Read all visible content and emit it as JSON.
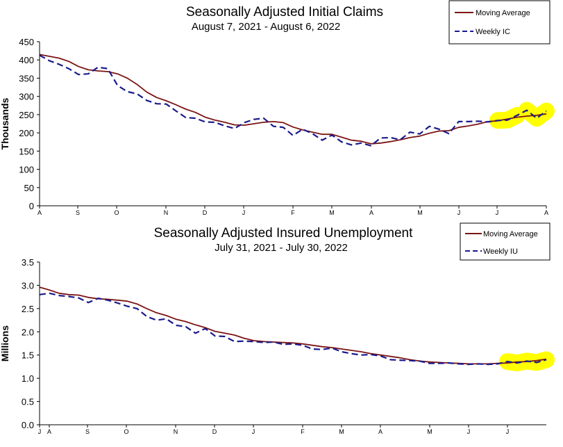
{
  "chart_data": [
    {
      "type": "line",
      "title": "Seasonally Adjusted Initial Claims",
      "subtitle": "August 7, 2021 - August 6, 2022",
      "xlabel": "",
      "ylabel": "Thousands",
      "ylim": [
        0,
        450
      ],
      "yticks": [
        "0",
        "50",
        "100",
        "150",
        "200",
        "250",
        "300",
        "350",
        "400",
        "450"
      ],
      "xticks": [
        "A",
        "S",
        "O",
        "N",
        "D",
        "J",
        "F",
        "M",
        "A",
        "M",
        "J",
        "J",
        "A"
      ],
      "grid": false,
      "legend": "top-right",
      "highlight_color": "#ffff00",
      "series": [
        {
          "name": "Moving Average",
          "color": "#7b1414",
          "style": "solid",
          "values": [
            415,
            410,
            405,
            396,
            382,
            373,
            370,
            368,
            362,
            350,
            333,
            312,
            297,
            288,
            277,
            265,
            256,
            243,
            235,
            229,
            222,
            221,
            225,
            229,
            231,
            228,
            216,
            208,
            202,
            196,
            196,
            188,
            180,
            177,
            170,
            172,
            176,
            181,
            187,
            191,
            199,
            205,
            206,
            215,
            219,
            224,
            231,
            233,
            238,
            243,
            246,
            248,
            252
          ]
        },
        {
          "name": "Weekly IC",
          "color": "#1a1a8c",
          "style": "dashed",
          "values": [
            413,
            398,
            388,
            376,
            360,
            362,
            380,
            376,
            330,
            313,
            307,
            289,
            280,
            279,
            260,
            242,
            240,
            230,
            229,
            219,
            212,
            228,
            237,
            240,
            218,
            215,
            193,
            210,
            198,
            180,
            194,
            175,
            167,
            172,
            165,
            186,
            187,
            181,
            202,
            197,
            218,
            210,
            198,
            231,
            231,
            232,
            230,
            234,
            235,
            248,
            262,
            240,
            260
          ]
        }
      ]
    },
    {
      "type": "line",
      "title": "Seasonally Adjusted Insured Unemployment",
      "subtitle": "July 31, 2021 - July 30, 2022",
      "xlabel": "",
      "ylabel": "Millions",
      "ylim": [
        0,
        3.5
      ],
      "yticks": [
        "0.0",
        "0.5",
        "1.0",
        "1.5",
        "2.0",
        "2.5",
        "3.0",
        "3.5"
      ],
      "xticks": [
        "J",
        "A",
        "S",
        "O",
        "N",
        "D",
        "J",
        "F",
        "M",
        "A",
        "M",
        "J",
        "J"
      ],
      "grid": false,
      "legend": "top-right",
      "highlight_color": "#ffff00",
      "series": [
        {
          "name": "Moving Average",
          "color": "#7b1414",
          "style": "solid",
          "values": [
            2.96,
            2.9,
            2.83,
            2.8,
            2.79,
            2.74,
            2.71,
            2.7,
            2.68,
            2.66,
            2.6,
            2.5,
            2.41,
            2.35,
            2.27,
            2.22,
            2.15,
            2.09,
            2.01,
            1.97,
            1.93,
            1.86,
            1.81,
            1.79,
            1.78,
            1.77,
            1.76,
            1.74,
            1.71,
            1.68,
            1.66,
            1.63,
            1.6,
            1.57,
            1.53,
            1.5,
            1.47,
            1.44,
            1.4,
            1.37,
            1.35,
            1.34,
            1.33,
            1.32,
            1.31,
            1.31,
            1.31,
            1.32,
            1.33,
            1.35,
            1.36,
            1.38,
            1.41
          ]
        },
        {
          "name": "Weekly IU",
          "color": "#1a1a8c",
          "style": "dashed",
          "values": [
            2.8,
            2.83,
            2.78,
            2.76,
            2.73,
            2.63,
            2.72,
            2.68,
            2.62,
            2.55,
            2.5,
            2.33,
            2.25,
            2.28,
            2.14,
            2.11,
            1.97,
            2.07,
            1.91,
            1.9,
            1.79,
            1.8,
            1.79,
            1.77,
            1.78,
            1.73,
            1.74,
            1.71,
            1.63,
            1.62,
            1.65,
            1.57,
            1.53,
            1.5,
            1.51,
            1.48,
            1.4,
            1.39,
            1.38,
            1.37,
            1.32,
            1.32,
            1.33,
            1.31,
            1.3,
            1.31,
            1.3,
            1.31,
            1.36,
            1.33,
            1.37,
            1.34,
            1.4
          ]
        }
      ]
    }
  ]
}
